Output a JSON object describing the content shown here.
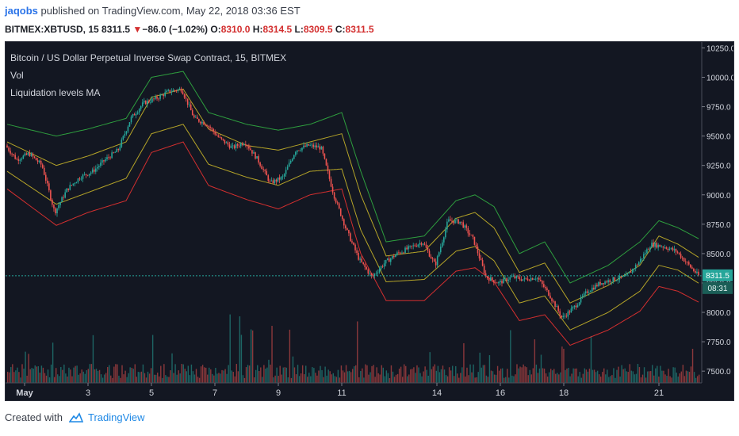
{
  "header": {
    "author": "jaqobs",
    "published": "published on TradingView.com, May 22, 2018 03:36 EST",
    "symbol": "BITMEX:XBTUSD, 15",
    "last": "8311.5",
    "arrow": "▼",
    "change": "−86.0 (−1.02%)",
    "o_label": "O:",
    "o_value": "8310.0",
    "h_label": "H:",
    "h_value": "8314.5",
    "l_label": "L:",
    "l_value": "8309.5",
    "c_label": "C:",
    "c_value": "8311.5"
  },
  "legend": {
    "title": "Bitcoin / US Dollar Perpetual Inverse Swap Contract, 15, BITMEX",
    "vol": "Vol",
    "indicator": "Liquidation levels MA"
  },
  "footer": {
    "created_with": "Created with",
    "brand": "TradingView"
  },
  "colors": {
    "bg": "#131722",
    "up": "#26a69a",
    "down": "#ef5350",
    "green_band": "#2e9e3e",
    "yellow_band": "#b5a428",
    "red_band": "#d32f2f",
    "price_tag": "#26a69a"
  },
  "chart_data": {
    "type": "line",
    "ylim": [
      7400,
      10300
    ],
    "y_ticks": [
      "10250.0",
      "10000.0",
      "9750.0",
      "9500.0",
      "9250.0",
      "9000.0",
      "8750.0",
      "8500.0",
      "8250.0",
      "8000.0",
      "7750.0",
      "7500.0"
    ],
    "y_tick_values": [
      10250,
      10000,
      9750,
      9500,
      9250,
      9000,
      8750,
      8500,
      8250,
      8000,
      7750,
      7500
    ],
    "x_ticks": [
      "May",
      "3",
      "5",
      "7",
      "9",
      "11",
      "14",
      "16",
      "18",
      "21"
    ],
    "x_tick_days": [
      1,
      3,
      5,
      7,
      9,
      11,
      14,
      16,
      18,
      21
    ],
    "x_range_days": [
      0.45,
      22.3
    ],
    "last_price": 8311.5,
    "last_price_label": "8311.5",
    "countdown": "08:31",
    "series": [
      {
        "key": "close",
        "x": [
          0.45,
          0.8,
          1.2,
          1.6,
          2.0,
          2.4,
          2.8,
          3.2,
          3.6,
          4.0,
          4.4,
          4.8,
          5.2,
          5.6,
          6.0,
          6.4,
          6.8,
          7.2,
          7.6,
          8.0,
          8.4,
          8.8,
          9.2,
          9.6,
          10.0,
          10.4,
          10.8,
          11.2,
          11.6,
          12.0,
          12.4,
          12.8,
          13.2,
          13.6,
          14.0,
          14.4,
          14.8,
          15.2,
          15.6,
          16.0,
          16.4,
          16.8,
          17.2,
          17.6,
          18.0,
          18.4,
          18.8,
          19.2,
          19.6,
          20.0,
          20.4,
          20.8,
          21.2,
          21.6,
          22.0,
          22.3
        ],
        "values": [
          9420,
          9300,
          9350,
          9250,
          8850,
          9050,
          9150,
          9200,
          9300,
          9380,
          9650,
          9780,
          9820,
          9880,
          9900,
          9650,
          9600,
          9480,
          9400,
          9450,
          9300,
          9100,
          9150,
          9380,
          9420,
          9400,
          9000,
          8700,
          8450,
          8300,
          8420,
          8500,
          8550,
          8600,
          8400,
          8780,
          8770,
          8620,
          8300,
          8250,
          8300,
          8280,
          8300,
          8150,
          7950,
          8050,
          8180,
          8250,
          8280,
          8300,
          8420,
          8580,
          8560,
          8520,
          8400,
          8311
        ]
      },
      {
        "key": "green-band",
        "x": [
          0.45,
          2.0,
          3.0,
          4.2,
          5.0,
          6.0,
          6.8,
          8.0,
          9.0,
          10.0,
          11.0,
          11.6,
          12.4,
          13.6,
          14.6,
          15.2,
          15.8,
          16.6,
          17.4,
          18.2,
          19.4,
          20.4,
          21.0,
          21.6,
          22.3
        ],
        "values": [
          9600,
          9500,
          9560,
          9650,
          10000,
          10050,
          9700,
          9600,
          9550,
          9600,
          9700,
          9200,
          8600,
          8650,
          8950,
          9000,
          8900,
          8500,
          8600,
          8250,
          8400,
          8600,
          8780,
          8720,
          8620
        ]
      },
      {
        "key": "yellow-outer",
        "x": [
          0.45,
          2.0,
          3.0,
          4.2,
          5.0,
          6.0,
          6.8,
          8.0,
          9.0,
          10.0,
          11.0,
          11.6,
          12.4,
          13.6,
          14.6,
          15.2,
          15.8,
          16.6,
          17.4,
          18.2,
          19.4,
          20.4,
          21.0,
          21.6,
          22.3
        ],
        "values": [
          9450,
          9250,
          9330,
          9450,
          9830,
          9900,
          9560,
          9420,
          9380,
          9450,
          9520,
          9000,
          8480,
          8520,
          8800,
          8850,
          8720,
          8340,
          8420,
          8080,
          8230,
          8400,
          8650,
          8580,
          8460
        ]
      },
      {
        "key": "yellow-inner",
        "x": [
          0.45,
          2.0,
          3.0,
          4.2,
          5.0,
          6.0,
          6.8,
          8.0,
          9.0,
          10.0,
          11.0,
          11.6,
          12.4,
          13.6,
          14.6,
          15.2,
          15.8,
          16.6,
          17.4,
          18.2,
          19.4,
          20.4,
          21.0,
          21.6,
          22.3
        ],
        "values": [
          9200,
          8920,
          9020,
          9140,
          9520,
          9600,
          9260,
          9150,
          9080,
          9200,
          9220,
          8700,
          8260,
          8280,
          8520,
          8560,
          8440,
          8080,
          8140,
          7850,
          8000,
          8180,
          8400,
          8360,
          8240
        ]
      },
      {
        "key": "red-band",
        "x": [
          0.45,
          2.0,
          3.0,
          4.2,
          5.0,
          6.0,
          6.8,
          8.0,
          9.0,
          10.0,
          11.0,
          11.6,
          12.4,
          13.6,
          14.6,
          15.2,
          15.8,
          16.6,
          17.4,
          18.2,
          19.4,
          20.4,
          21.0,
          21.6,
          22.3
        ],
        "values": [
          9050,
          8740,
          8850,
          8950,
          9360,
          9450,
          9080,
          8960,
          8880,
          9000,
          9050,
          8500,
          8100,
          8100,
          8350,
          8380,
          8260,
          7930,
          7980,
          7720,
          7850,
          8010,
          8220,
          8180,
          8080
        ]
      }
    ]
  }
}
